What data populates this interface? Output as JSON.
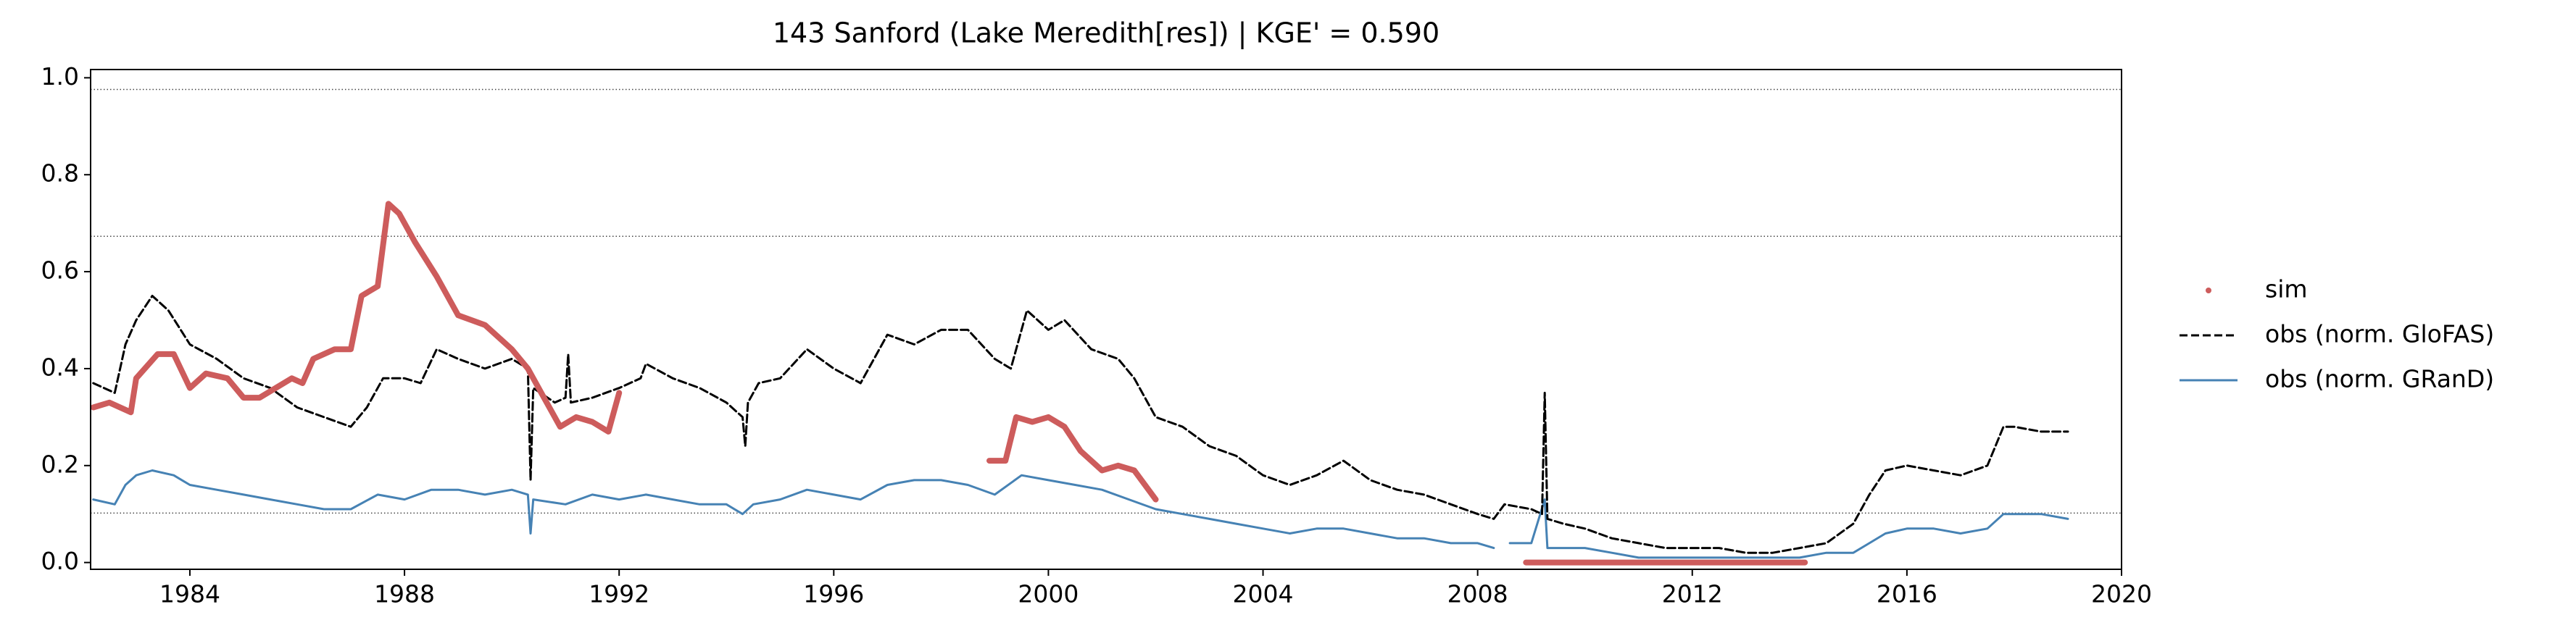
{
  "chart_data": {
    "type": "line",
    "title": "143  Sanford (Lake Meredith[res]) | KGE' = 0.590",
    "xlim": [
      1982.15,
      2020
    ],
    "xticks": [
      1984,
      1988,
      1992,
      1996,
      2000,
      2004,
      2008,
      2012,
      2016,
      2020
    ],
    "ylim": [
      -0.014,
      1.017
    ],
    "yticks": [
      {
        "value": 0,
        "label": "0.0"
      },
      0.2,
      0.4,
      0.6,
      0.8,
      {
        "value": 1,
        "label": "1.0"
      }
    ],
    "reference_lines": [
      0.976,
      0.673,
      0.102
    ],
    "legend": "right",
    "series": [
      {
        "name": "sim",
        "color": "#cd5c5c",
        "style": "dots",
        "x": [
          1982.2,
          1982.5,
          1982.9,
          1983.0,
          1983.4,
          1983.7,
          1984.0,
          1984.3,
          1984.7,
          1985.0,
          1985.3,
          1985.6,
          1985.9,
          1986.1,
          1986.3,
          1986.7,
          1987.0,
          1987.2,
          1987.5,
          1987.7,
          1987.9,
          1988.2,
          1988.6,
          1989.0,
          1989.5,
          1990.0,
          1990.3,
          1990.6,
          1990.9,
          1991.2,
          1991.5,
          1991.8,
          1992.0,
          1995.0,
          1998.9,
          1999.2,
          1999.4,
          1999.7,
          2000.0,
          2000.3,
          2000.6,
          2001.0,
          2001.3,
          2001.6,
          2002.0,
          2005.0,
          2008.9,
          2010.0,
          2011.0,
          2012.0,
          2013.0,
          2014.1
        ],
        "values": [
          0.32,
          0.33,
          0.31,
          0.38,
          0.43,
          0.43,
          0.36,
          0.39,
          0.38,
          0.34,
          0.34,
          0.36,
          0.38,
          0.37,
          0.42,
          0.44,
          0.44,
          0.55,
          0.57,
          0.74,
          0.72,
          0.66,
          0.59,
          0.51,
          0.49,
          0.44,
          0.4,
          0.34,
          0.28,
          0.3,
          0.29,
          0.27,
          0.35,
          null,
          0.21,
          0.21,
          0.3,
          0.29,
          0.3,
          0.28,
          0.23,
          0.19,
          0.2,
          0.19,
          0.13,
          null,
          0.0,
          0.0,
          0.0,
          0.0,
          0.0,
          0.0
        ]
      },
      {
        "name": "obs (norm. GloFAS)",
        "color": "#000000",
        "style": "dashed",
        "x": [
          1982.2,
          1982.6,
          1982.8,
          1983.0,
          1983.3,
          1983.6,
          1984.0,
          1984.5,
          1985.0,
          1985.5,
          1986.0,
          1986.5,
          1987.0,
          1987.3,
          1987.6,
          1988.0,
          1988.3,
          1988.6,
          1989.0,
          1989.5,
          1990.0,
          1990.3,
          1990.35,
          1990.4,
          1990.8,
          1991.0,
          1991.05,
          1991.1,
          1991.5,
          1992.0,
          1992.4,
          1992.5,
          1993.0,
          1993.5,
          1994.0,
          1994.3,
          1994.35,
          1994.4,
          1994.6,
          1995.0,
          1995.5,
          1996.0,
          1996.5,
          1997.0,
          1997.5,
          1998.0,
          1998.5,
          1999.0,
          1999.3,
          1999.6,
          2000.0,
          2000.3,
          2000.8,
          2001.3,
          2001.6,
          2002.0,
          2002.5,
          2003.0,
          2003.5,
          2004.0,
          2004.5,
          2005.0,
          2005.5,
          2006.0,
          2006.5,
          2007.0,
          2007.5,
          2008.0,
          2008.3,
          2008.5,
          2009.0,
          2009.2,
          2009.25,
          2009.3,
          2009.6,
          2010.0,
          2010.5,
          2011.0,
          2011.5,
          2012.0,
          2012.5,
          2013.0,
          2013.5,
          2014.0,
          2014.5,
          2015.0,
          2015.3,
          2015.6,
          2016.0,
          2016.5,
          2017.0,
          2017.5,
          2017.8,
          2018.0,
          2018.5,
          2019.0
        ],
        "values": [
          0.37,
          0.35,
          0.45,
          0.5,
          0.55,
          0.52,
          0.45,
          0.42,
          0.38,
          0.36,
          0.32,
          0.3,
          0.28,
          0.32,
          0.38,
          0.38,
          0.37,
          0.44,
          0.42,
          0.4,
          0.42,
          0.4,
          0.17,
          0.36,
          0.33,
          0.34,
          0.43,
          0.33,
          0.34,
          0.36,
          0.38,
          0.41,
          0.38,
          0.36,
          0.33,
          0.3,
          0.24,
          0.33,
          0.37,
          0.38,
          0.44,
          0.4,
          0.37,
          0.47,
          0.45,
          0.48,
          0.48,
          0.42,
          0.4,
          0.52,
          0.48,
          0.5,
          0.44,
          0.42,
          0.38,
          0.3,
          0.28,
          0.24,
          0.22,
          0.18,
          0.16,
          0.18,
          0.21,
          0.17,
          0.15,
          0.14,
          0.12,
          0.1,
          0.09,
          0.12,
          0.11,
          0.1,
          0.35,
          0.09,
          0.08,
          0.07,
          0.05,
          0.04,
          0.03,
          0.03,
          0.03,
          0.02,
          0.02,
          0.03,
          0.04,
          0.08,
          0.14,
          0.19,
          0.2,
          0.19,
          0.18,
          0.2,
          0.28,
          0.28,
          0.27,
          0.27
        ]
      },
      {
        "name": "obs (norm. GRanD)",
        "color": "#4682b4",
        "style": "solid",
        "x": [
          1982.2,
          1982.6,
          1982.8,
          1983.0,
          1983.3,
          1983.7,
          1984.0,
          1984.5,
          1985.0,
          1985.5,
          1986.0,
          1986.5,
          1987.0,
          1987.5,
          1988.0,
          1988.5,
          1989.0,
          1989.5,
          1990.0,
          1990.3,
          1990.35,
          1990.4,
          1991.0,
          1991.5,
          1992.0,
          1992.5,
          1993.0,
          1993.5,
          1994.0,
          1994.3,
          1994.5,
          1995.0,
          1995.5,
          1996.0,
          1996.5,
          1997.0,
          1997.5,
          1998.0,
          1998.5,
          1999.0,
          1999.5,
          2000.0,
          2000.5,
          2001.0,
          2001.5,
          2002.0,
          2002.5,
          2003.0,
          2003.5,
          2004.0,
          2004.5,
          2005.0,
          2005.5,
          2006.0,
          2006.5,
          2007.0,
          2007.5,
          2008.0,
          2008.3,
          2008.45,
          2008.6,
          2009.0,
          2009.25,
          2009.3,
          2010.0,
          2010.5,
          2011.0,
          2012.0,
          2013.0,
          2014.0,
          2014.5,
          2015.0,
          2015.3,
          2015.6,
          2016.0,
          2016.5,
          2017.0,
          2017.5,
          2017.8,
          2018.5,
          2019.0
        ],
        "values": [
          0.13,
          0.12,
          0.16,
          0.18,
          0.19,
          0.18,
          0.16,
          0.15,
          0.14,
          0.13,
          0.12,
          0.11,
          0.11,
          0.14,
          0.13,
          0.15,
          0.15,
          0.14,
          0.15,
          0.14,
          0.06,
          0.13,
          0.12,
          0.14,
          0.13,
          0.14,
          0.13,
          0.12,
          0.12,
          0.1,
          0.12,
          0.13,
          0.15,
          0.14,
          0.13,
          0.16,
          0.17,
          0.17,
          0.16,
          0.14,
          0.18,
          0.17,
          0.16,
          0.15,
          0.13,
          0.11,
          0.1,
          0.09,
          0.08,
          0.07,
          0.06,
          0.07,
          0.07,
          0.06,
          0.05,
          0.05,
          0.04,
          0.04,
          0.03,
          null,
          0.04,
          0.04,
          0.13,
          0.03,
          0.03,
          0.02,
          0.01,
          0.01,
          0.01,
          0.01,
          0.02,
          0.02,
          0.04,
          0.06,
          0.07,
          0.07,
          0.06,
          0.07,
          0.1,
          0.1,
          0.09
        ]
      }
    ]
  }
}
